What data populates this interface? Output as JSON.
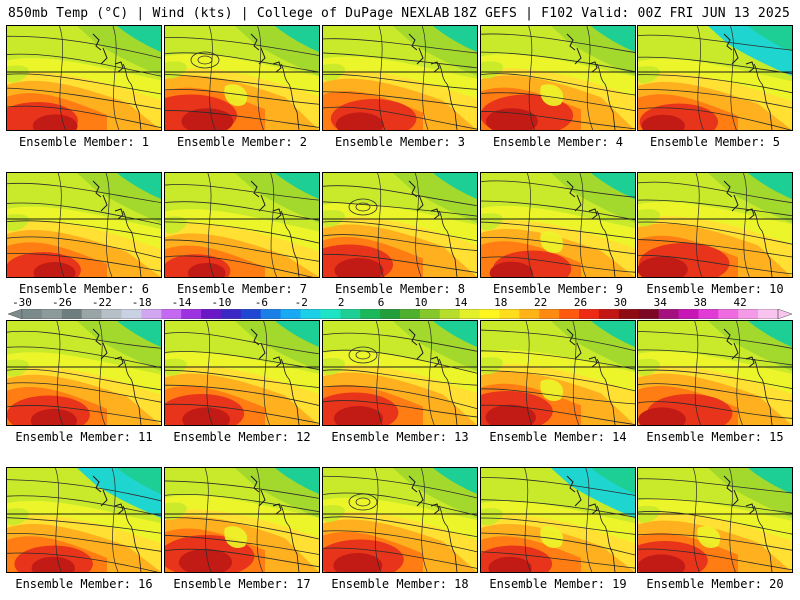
{
  "header": {
    "left": "850mb Temp (°C) | Wind (kts) | College of DuPage NEXLAB",
    "right": "18Z GEFS | F102 Valid: 00Z FRI JUN 13 2025"
  },
  "panel_label_prefix": "Ensemble Member: ",
  "members": [
    {
      "label": "Ensemble Member: 1",
      "palette": [
        "#ffd24d",
        "#ffe033",
        "#ecf52a",
        "#c8ea2a",
        "#a3d82c",
        "#ffb01f",
        "#ff7d12",
        "#c21b15"
      ],
      "warmth": 0.6,
      "cold_ne": false,
      "mountain": false,
      "cutoff_low": false
    },
    {
      "label": "Ensemble Member: 2",
      "palette": [
        "#ffd24d",
        "#ffe033",
        "#ecf52a",
        "#c8ea2a",
        "#a3d82c",
        "#ffb01f",
        "#ff7d12",
        "#c21b15"
      ],
      "warmth": 0.85,
      "cold_ne": false,
      "mountain": true,
      "cutoff_low": true
    },
    {
      "label": "Ensemble Member: 3",
      "palette": [
        "#ffd24d",
        "#ffe033",
        "#ecf52a",
        "#c8ea2a",
        "#a3d82c",
        "#ffb01f",
        "#ff7d12",
        "#c21b15"
      ],
      "warmth": 0.7,
      "cold_ne": false,
      "mountain": false,
      "cutoff_low": false
    },
    {
      "label": "Ensemble Member: 4",
      "palette": [
        "#ffd24d",
        "#ffe033",
        "#ecf52a",
        "#c8ea2a",
        "#a3d82c",
        "#ffb01f",
        "#ff7d12",
        "#c21b15"
      ],
      "warmth": 0.85,
      "cold_ne": false,
      "mountain": true,
      "cutoff_low": false
    },
    {
      "label": "Ensemble Member: 5",
      "palette": [
        "#ffd24d",
        "#ffe033",
        "#ecf52a",
        "#c8ea2a",
        "#a3d82c",
        "#ffb01f",
        "#ff7d12",
        "#c21b15"
      ],
      "warmth": 0.55,
      "cold_ne": true,
      "mountain": false,
      "cutoff_low": false
    },
    {
      "label": "Ensemble Member: 6",
      "palette": [
        "#ffd24d",
        "#ffe033",
        "#ecf52a",
        "#c8ea2a",
        "#a3d82c",
        "#ffb01f",
        "#ff7d12",
        "#c21b15"
      ],
      "warmth": 0.5,
      "cold_ne": false,
      "mountain": false,
      "cutoff_low": false
    },
    {
      "label": "Ensemble Member: 7",
      "palette": [
        "#ffd24d",
        "#ffe033",
        "#ecf52a",
        "#c8ea2a",
        "#a3d82c",
        "#ffb01f",
        "#ff7d12",
        "#c21b15"
      ],
      "warmth": 0.35,
      "cold_ne": false,
      "mountain": false,
      "cutoff_low": false
    },
    {
      "label": "Ensemble Member: 8",
      "palette": [
        "#ffd24d",
        "#ffe033",
        "#ecf52a",
        "#c8ea2a",
        "#a3d82c",
        "#ffb01f",
        "#ff7d12",
        "#c21b15"
      ],
      "warmth": 0.75,
      "cold_ne": false,
      "mountain": false,
      "cutoff_low": true
    },
    {
      "label": "Ensemble Member: 9",
      "palette": [
        "#ffd24d",
        "#ffe033",
        "#ecf52a",
        "#c8ea2a",
        "#a3d82c",
        "#ffb01f",
        "#ff7d12",
        "#c21b15"
      ],
      "warmth": 0.55,
      "cold_ne": false,
      "mountain": true,
      "cutoff_low": false
    },
    {
      "label": "Ensemble Member: 10",
      "palette": [
        "#ffd24d",
        "#ffe033",
        "#ecf52a",
        "#c8ea2a",
        "#a3d82c",
        "#ffb01f",
        "#ff7d12",
        "#c21b15"
      ],
      "warmth": 0.8,
      "cold_ne": false,
      "mountain": false,
      "cutoff_low": false
    },
    {
      "label": "Ensemble Member: 11",
      "palette": [
        "#ffd24d",
        "#ffe033",
        "#ecf52a",
        "#c8ea2a",
        "#a3d82c",
        "#ffb01f",
        "#ff7d12",
        "#c21b15"
      ],
      "warmth": 0.65,
      "cold_ne": false,
      "mountain": false,
      "cutoff_low": false
    },
    {
      "label": "Ensemble Member: 12",
      "palette": [
        "#ffd24d",
        "#ffe033",
        "#ecf52a",
        "#c8ea2a",
        "#a3d82c",
        "#ffb01f",
        "#ff7d12",
        "#c21b15"
      ],
      "warmth": 0.7,
      "cold_ne": false,
      "mountain": false,
      "cutoff_low": false
    },
    {
      "label": "Ensemble Member: 13",
      "palette": [
        "#ffd24d",
        "#ffe033",
        "#ecf52a",
        "#c8ea2a",
        "#a3d82c",
        "#ffb01f",
        "#ff7d12",
        "#c21b15"
      ],
      "warmth": 0.75,
      "cold_ne": false,
      "mountain": false,
      "cutoff_low": true
    },
    {
      "label": "Ensemble Member: 14",
      "palette": [
        "#ffd24d",
        "#ffe033",
        "#ecf52a",
        "#c8ea2a",
        "#a3d82c",
        "#ffb01f",
        "#ff7d12",
        "#c21b15"
      ],
      "warmth": 0.8,
      "cold_ne": false,
      "mountain": true,
      "cutoff_low": false
    },
    {
      "label": "Ensemble Member: 15",
      "palette": [
        "#ffd24d",
        "#ffe033",
        "#ecf52a",
        "#c8ea2a",
        "#a3d82c",
        "#ffb01f",
        "#ff7d12",
        "#c21b15"
      ],
      "warmth": 0.7,
      "cold_ne": false,
      "mountain": false,
      "cutoff_low": false
    },
    {
      "label": "Ensemble Member: 16",
      "palette": [
        "#ffd24d",
        "#ffe033",
        "#ecf52a",
        "#c8ea2a",
        "#a3d82c",
        "#ffb01f",
        "#ff7d12",
        "#c21b15"
      ],
      "warmth": 0.55,
      "cold_ne": true,
      "mountain": false,
      "cutoff_low": false
    },
    {
      "label": "Ensemble Member: 17",
      "palette": [
        "#ffd24d",
        "#ffe033",
        "#ecf52a",
        "#c8ea2a",
        "#a3d82c",
        "#ffb01f",
        "#ff7d12",
        "#c21b15"
      ],
      "warmth": 0.9,
      "cold_ne": false,
      "mountain": true,
      "cutoff_low": false
    },
    {
      "label": "Ensemble Member: 18",
      "palette": [
        "#ffd24d",
        "#ffe033",
        "#ecf52a",
        "#c8ea2a",
        "#a3d82c",
        "#ffb01f",
        "#ff7d12",
        "#c21b15"
      ],
      "warmth": 0.75,
      "cold_ne": false,
      "mountain": false,
      "cutoff_low": true
    },
    {
      "label": "Ensemble Member: 19",
      "palette": [
        "#ffd24d",
        "#ffe033",
        "#ecf52a",
        "#c8ea2a",
        "#a3d82c",
        "#ffb01f",
        "#ff7d12",
        "#c21b15"
      ],
      "warmth": 0.55,
      "cold_ne": true,
      "mountain": true,
      "cutoff_low": false
    },
    {
      "label": "Ensemble Member: 20",
      "palette": [
        "#ffd24d",
        "#ffe033",
        "#ecf52a",
        "#c8ea2a",
        "#a3d82c",
        "#ffb01f",
        "#ff7d12",
        "#c21b15"
      ],
      "warmth": 0.7,
      "cold_ne": false,
      "mountain": true,
      "cutoff_low": false
    }
  ],
  "colorbar": {
    "ticks": [
      "-30",
      "-26",
      "-22",
      "-18",
      "-14",
      "-10",
      "-6",
      "-2",
      "2",
      "6",
      "10",
      "14",
      "18",
      "22",
      "26",
      "30",
      "34",
      "38",
      "42"
    ],
    "colors": [
      "#7b8a8a",
      "#8c9a9a",
      "#6e7e7e",
      "#9aa5a5",
      "#b7bfc7",
      "#c9d2e3",
      "#d2a6f0",
      "#c46af2",
      "#9d32e0",
      "#6a18c6",
      "#3a27c4",
      "#1f47d4",
      "#1b7fe8",
      "#18a9f3",
      "#1ccfe8",
      "#1ee4c6",
      "#1ecf95",
      "#1ab85b",
      "#229e3a",
      "#4fb02e",
      "#86c82b",
      "#b7de2b",
      "#e2f02a",
      "#fff51f",
      "#ffdc1c",
      "#ffb317",
      "#ff8a12",
      "#ff5a0f",
      "#ee2a14",
      "#c11614",
      "#8f0b12",
      "#7c0724",
      "#a4117e",
      "#c617b6",
      "#e23ad6",
      "#f06be0",
      "#f59ae6",
      "#f9c5f0"
    ]
  },
  "colors": {
    "ocean_cold": "#1ecf95",
    "ne_cold": "#1fd5d0",
    "contour": "#2c2c2c",
    "boundary": "#1a1a1a"
  }
}
